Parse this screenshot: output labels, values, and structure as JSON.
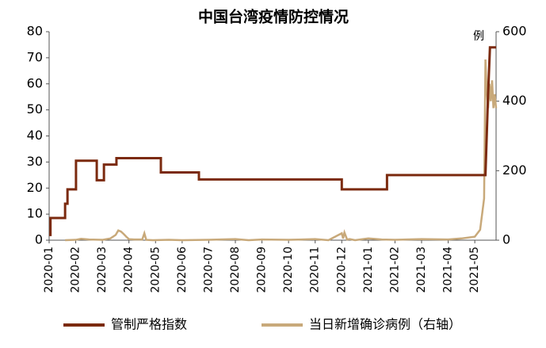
{
  "chart_data": {
    "type": "line",
    "title": "中国台湾疫情防控情况",
    "y2label": "例",
    "xlim": [
      0,
      16.8
    ],
    "xticks": [
      {
        "value": 0,
        "label": "2020-01"
      },
      {
        "value": 1,
        "label": "2020-02"
      },
      {
        "value": 2,
        "label": "2020-03"
      },
      {
        "value": 3,
        "label": "2020-04"
      },
      {
        "value": 4,
        "label": "2020-05"
      },
      {
        "value": 5,
        "label": "2020-06"
      },
      {
        "value": 6,
        "label": "2020-07"
      },
      {
        "value": 7,
        "label": "2020-08"
      },
      {
        "value": 8,
        "label": "2020-09"
      },
      {
        "value": 9,
        "label": "2020-10"
      },
      {
        "value": 10,
        "label": "2020-11"
      },
      {
        "value": 11,
        "label": "2020-12"
      },
      {
        "value": 12,
        "label": "2021-01"
      },
      {
        "value": 13,
        "label": "2021-02"
      },
      {
        "value": 14,
        "label": "2021-03"
      },
      {
        "value": 15,
        "label": "2021-04"
      },
      {
        "value": 16,
        "label": "2021-05"
      }
    ],
    "ylim": [
      0,
      80
    ],
    "yticks": [
      0,
      10,
      20,
      30,
      40,
      50,
      60,
      70,
      80
    ],
    "y2lim": [
      0,
      600
    ],
    "y2ticks": [
      0,
      200,
      400,
      600
    ],
    "series": [
      {
        "name": "管制严格指数",
        "color": "#7b2a0f",
        "axis": "y",
        "x": [
          0,
          0.05,
          0.05,
          0.6,
          0.6,
          0.69,
          0.69,
          1.01,
          1.01,
          1.79,
          1.79,
          2.06,
          2.06,
          2.53,
          2.53,
          4.2,
          4.2,
          5.63,
          5.63,
          11.0,
          11.0,
          12.7,
          12.7,
          16.4,
          16.5,
          16.57,
          16.8
        ],
        "values": [
          2,
          2,
          8.5,
          8.5,
          14,
          14,
          19.5,
          19.5,
          30.5,
          30.5,
          23,
          23,
          29,
          29,
          31.5,
          31.5,
          26,
          26,
          23.3,
          23.3,
          19.5,
          19.5,
          25,
          25,
          56,
          74,
          74
        ]
      },
      {
        "name": "当日新增确诊病例（右轴）",
        "color": "#c8a97a",
        "axis": "y2",
        "x": [
          0.6,
          1,
          1.2,
          1.5,
          2,
          2.3,
          2.5,
          2.6,
          2.7,
          2.8,
          2.9,
          3.0,
          3.2,
          3.5,
          3.58,
          3.65,
          3.9,
          4.5,
          5,
          6,
          7,
          7.5,
          8,
          9,
          10,
          10.5,
          11,
          11.05,
          11.1,
          11.2,
          11.3,
          11.5,
          12,
          12.5,
          13,
          14,
          15,
          15.5,
          16,
          16.2,
          16.35,
          16.4,
          16.45,
          16.5,
          16.55,
          16.6,
          16.65,
          16.7,
          16.75,
          16.8
        ],
        "values": [
          0,
          1,
          4,
          2,
          1,
          5,
          15,
          28,
          25,
          18,
          10,
          3,
          2,
          2,
          20,
          1,
          0,
          1,
          0,
          1,
          3,
          0,
          2,
          1,
          3,
          0,
          20,
          5,
          22,
          2,
          3,
          0,
          5,
          2,
          1,
          3,
          2,
          5,
          10,
          30,
          120,
          520,
          430,
          380,
          450,
          400,
          460,
          380,
          420,
          380
        ]
      }
    ]
  }
}
